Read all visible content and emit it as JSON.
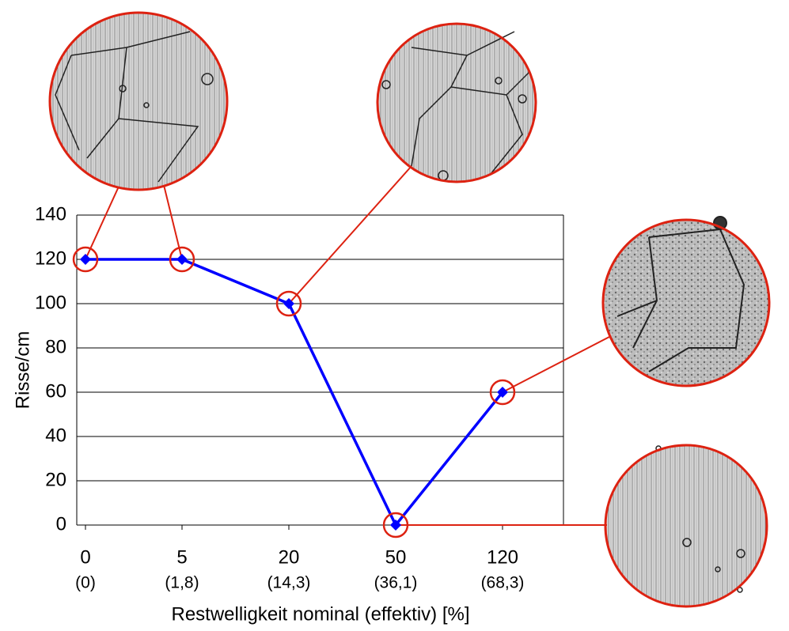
{
  "chart_data": {
    "type": "line",
    "categories": [
      "0",
      "5",
      "20",
      "50",
      "120"
    ],
    "category_sublabels": [
      "(0)",
      "(1,8)",
      "(14,3)",
      "(36,1)",
      "(68,3)"
    ],
    "series": [
      {
        "name": "Risse/cm",
        "color": "#0000ff",
        "values": [
          120,
          120,
          100,
          0,
          60
        ]
      }
    ],
    "ylabel": "Risse/cm",
    "xlabel": "Restwelligkeit nominal (effektiv) [%]",
    "ylim": [
      0,
      140
    ],
    "yticks": [
      0,
      20,
      40,
      60,
      80,
      100,
      120,
      140
    ],
    "grid": true,
    "highlight_color": "#dd2211"
  }
}
